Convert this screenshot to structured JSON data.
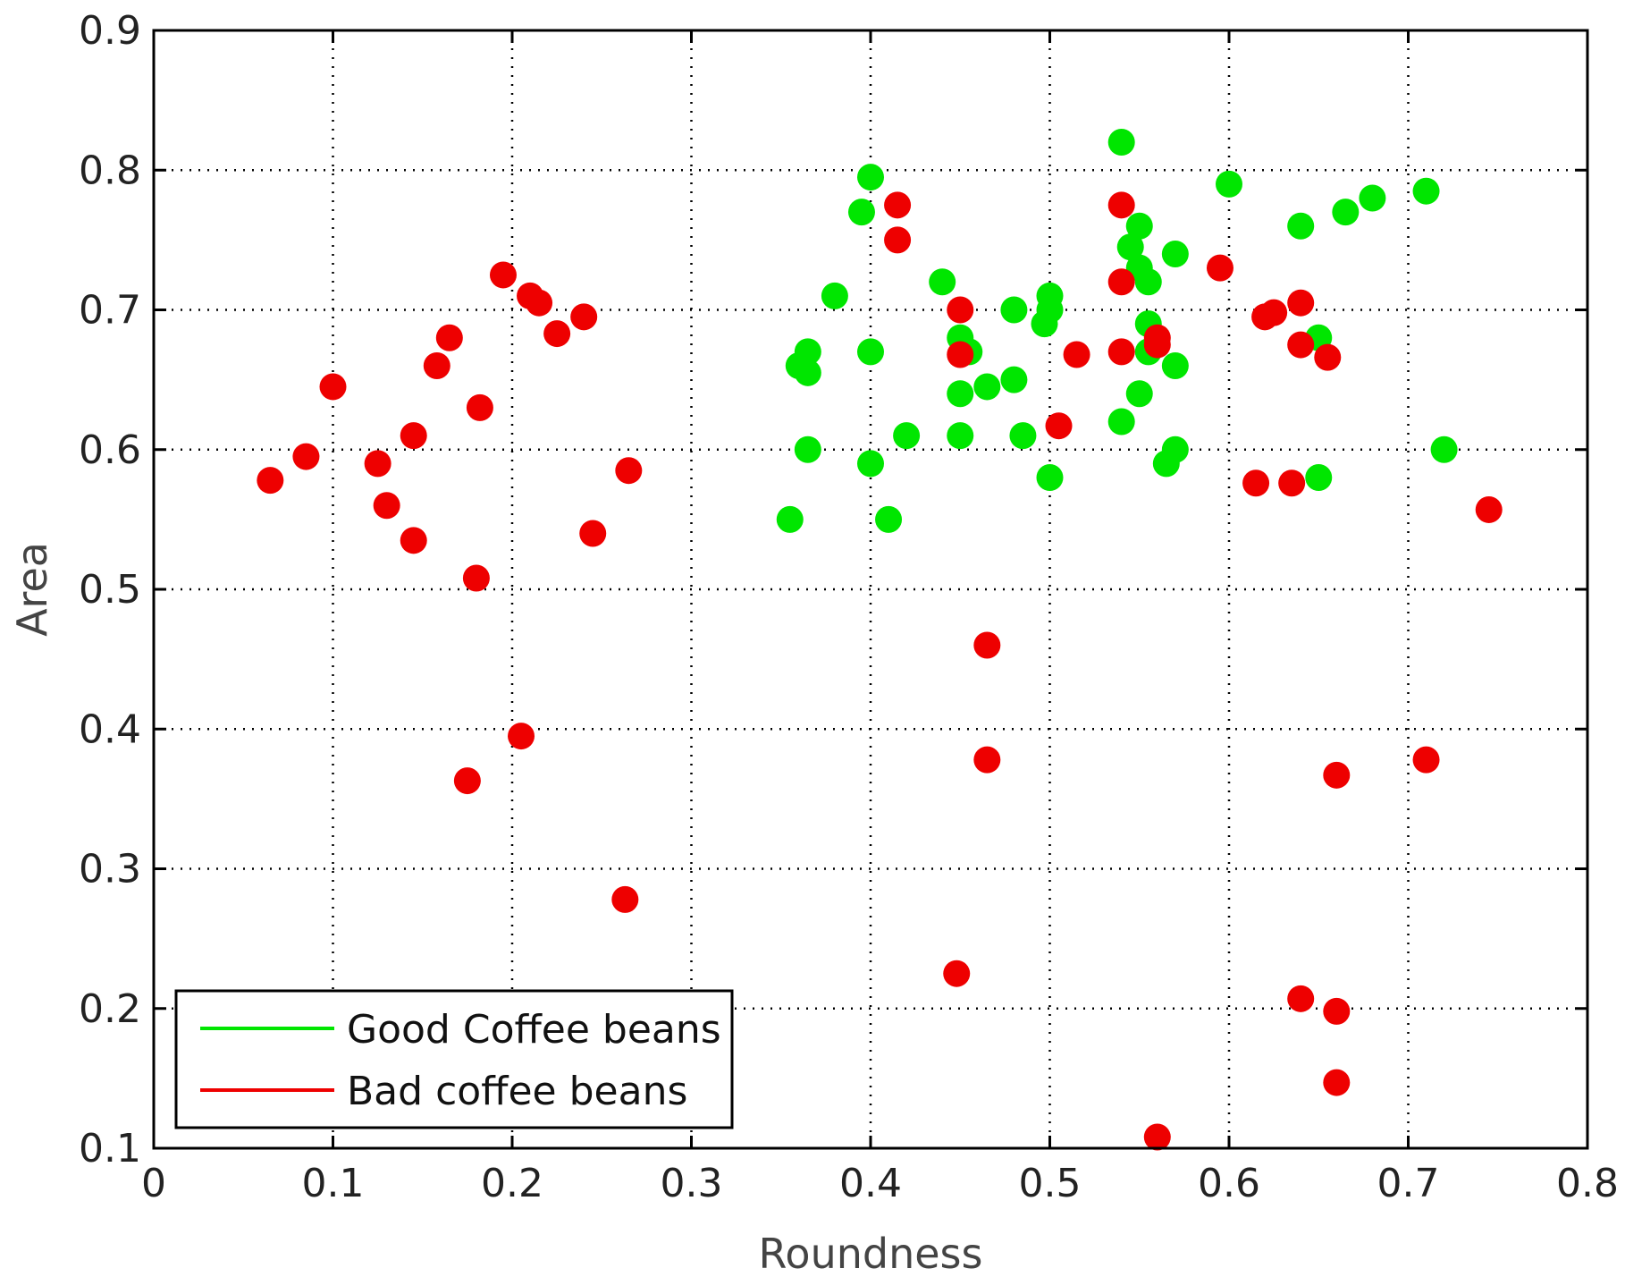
{
  "chart_data": {
    "type": "scatter",
    "title": "",
    "xlabel": "Roundness",
    "ylabel": "Area",
    "xlim": [
      0,
      0.8
    ],
    "ylim": [
      0.1,
      0.9
    ],
    "xticks": [
      "0",
      "0.1",
      "0.2",
      "0.3",
      "0.4",
      "0.5",
      "0.6",
      "0.7",
      "0.8"
    ],
    "yticks": [
      "0.1",
      "0.2",
      "0.3",
      "0.4",
      "0.5",
      "0.6",
      "0.7",
      "0.8",
      "0.9"
    ],
    "grid": true,
    "legend_position": "bottom-left",
    "series": [
      {
        "name": "Good Coffee beans",
        "color": "#00e600",
        "points": [
          [
            0.54,
            0.82
          ],
          [
            0.4,
            0.795
          ],
          [
            0.6,
            0.79
          ],
          [
            0.71,
            0.785
          ],
          [
            0.68,
            0.78
          ],
          [
            0.665,
            0.77
          ],
          [
            0.395,
            0.77
          ],
          [
            0.64,
            0.76
          ],
          [
            0.55,
            0.76
          ],
          [
            0.545,
            0.745
          ],
          [
            0.55,
            0.73
          ],
          [
            0.57,
            0.74
          ],
          [
            0.555,
            0.72
          ],
          [
            0.44,
            0.72
          ],
          [
            0.38,
            0.71
          ],
          [
            0.5,
            0.71
          ],
          [
            0.5,
            0.7
          ],
          [
            0.48,
            0.7
          ],
          [
            0.497,
            0.69
          ],
          [
            0.555,
            0.69
          ],
          [
            0.45,
            0.68
          ],
          [
            0.65,
            0.68
          ],
          [
            0.455,
            0.67
          ],
          [
            0.4,
            0.67
          ],
          [
            0.365,
            0.67
          ],
          [
            0.36,
            0.66
          ],
          [
            0.365,
            0.655
          ],
          [
            0.57,
            0.66
          ],
          [
            0.555,
            0.67
          ],
          [
            0.48,
            0.65
          ],
          [
            0.465,
            0.645
          ],
          [
            0.45,
            0.64
          ],
          [
            0.55,
            0.64
          ],
          [
            0.54,
            0.62
          ],
          [
            0.42,
            0.61
          ],
          [
            0.45,
            0.61
          ],
          [
            0.485,
            0.61
          ],
          [
            0.365,
            0.6
          ],
          [
            0.4,
            0.59
          ],
          [
            0.57,
            0.6
          ],
          [
            0.565,
            0.59
          ],
          [
            0.72,
            0.6
          ],
          [
            0.5,
            0.58
          ],
          [
            0.65,
            0.58
          ],
          [
            0.355,
            0.55
          ],
          [
            0.41,
            0.55
          ]
        ]
      },
      {
        "name": "Bad coffee beans",
        "color": "#ee0000",
        "points": [
          [
            0.415,
            0.775
          ],
          [
            0.54,
            0.775
          ],
          [
            0.415,
            0.75
          ],
          [
            0.195,
            0.725
          ],
          [
            0.21,
            0.71
          ],
          [
            0.215,
            0.705
          ],
          [
            0.24,
            0.695
          ],
          [
            0.225,
            0.683
          ],
          [
            0.165,
            0.68
          ],
          [
            0.158,
            0.66
          ],
          [
            0.1,
            0.645
          ],
          [
            0.182,
            0.63
          ],
          [
            0.145,
            0.61
          ],
          [
            0.085,
            0.595
          ],
          [
            0.125,
            0.59
          ],
          [
            0.065,
            0.578
          ],
          [
            0.265,
            0.585
          ],
          [
            0.13,
            0.56
          ],
          [
            0.245,
            0.54
          ],
          [
            0.145,
            0.535
          ],
          [
            0.18,
            0.508
          ],
          [
            0.54,
            0.72
          ],
          [
            0.595,
            0.73
          ],
          [
            0.64,
            0.705
          ],
          [
            0.625,
            0.698
          ],
          [
            0.62,
            0.695
          ],
          [
            0.45,
            0.7
          ],
          [
            0.45,
            0.668
          ],
          [
            0.515,
            0.668
          ],
          [
            0.54,
            0.67
          ],
          [
            0.56,
            0.68
          ],
          [
            0.56,
            0.675
          ],
          [
            0.64,
            0.675
          ],
          [
            0.655,
            0.666
          ],
          [
            0.505,
            0.617
          ],
          [
            0.615,
            0.576
          ],
          [
            0.635,
            0.576
          ],
          [
            0.745,
            0.557
          ],
          [
            0.465,
            0.46
          ],
          [
            0.465,
            0.378
          ],
          [
            0.205,
            0.395
          ],
          [
            0.175,
            0.363
          ],
          [
            0.66,
            0.367
          ],
          [
            0.71,
            0.378
          ],
          [
            0.263,
            0.278
          ],
          [
            0.448,
            0.225
          ],
          [
            0.64,
            0.207
          ],
          [
            0.66,
            0.198
          ],
          [
            0.66,
            0.147
          ],
          [
            0.56,
            0.108
          ]
        ]
      }
    ]
  }
}
